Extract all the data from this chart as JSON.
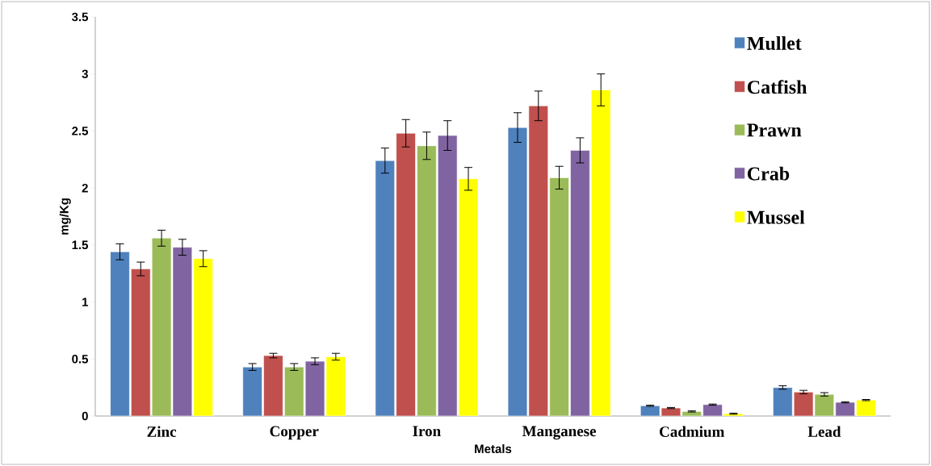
{
  "chart_data": {
    "type": "bar",
    "xlabel": "Metals",
    "ylabel": "mg/Kg",
    "categories": [
      "Zinc",
      "Copper",
      "Iron",
      "Manganese",
      "Cadmium",
      "Lead"
    ],
    "series": [
      {
        "name": "Mullet",
        "color": "#4f81bd",
        "values": [
          1.44,
          0.43,
          2.24,
          2.53,
          0.09,
          0.25
        ],
        "errors": [
          0.07,
          0.03,
          0.11,
          0.13,
          0.005,
          0.015
        ]
      },
      {
        "name": "Catfish",
        "color": "#c0504d",
        "values": [
          1.29,
          0.53,
          2.48,
          2.72,
          0.07,
          0.21
        ],
        "errors": [
          0.06,
          0.02,
          0.12,
          0.13,
          0.005,
          0.015
        ]
      },
      {
        "name": "Prawn",
        "color": "#9bbb59",
        "values": [
          1.56,
          0.43,
          2.37,
          2.09,
          0.04,
          0.19
        ],
        "errors": [
          0.07,
          0.03,
          0.12,
          0.1,
          0.005,
          0.015
        ]
      },
      {
        "name": "Crab",
        "color": "#8064a2",
        "values": [
          1.48,
          0.48,
          2.46,
          2.33,
          0.1,
          0.12
        ],
        "errors": [
          0.07,
          0.03,
          0.13,
          0.11,
          0.005,
          0.005
        ]
      },
      {
        "name": "Mussel",
        "color": "#ffff00",
        "values": [
          1.38,
          0.52,
          2.08,
          2.86,
          0.02,
          0.14
        ],
        "errors": [
          0.07,
          0.03,
          0.1,
          0.14,
          0.005,
          0.005
        ]
      }
    ],
    "ylim": [
      0,
      3.5
    ],
    "yticks": [
      0,
      0.5,
      1,
      1.5,
      2,
      2.5,
      3,
      3.5
    ],
    "grid": false,
    "legend": "top right"
  }
}
